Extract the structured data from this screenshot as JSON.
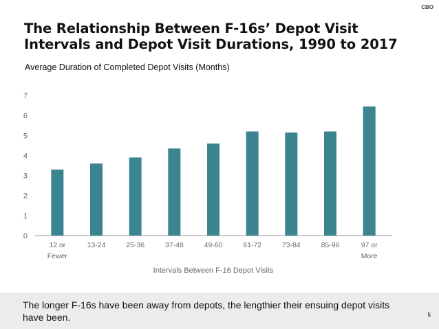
{
  "header": {
    "org": "CBO",
    "title_line1": "The Relationship Between F-16s’ Depot Visit",
    "title_line2": "Intervals and Depot Visit Durations, 1990 to 2017"
  },
  "footer": {
    "text": "The longer F-16s have been away from depots, the lengthier their ensuing depot visits have been.",
    "page": "5"
  },
  "chart_data": {
    "type": "bar",
    "title": "Average Duration of Completed Depot Visits (Months)",
    "xlabel": "Intervals Between F-16 Depot Visits",
    "ylabel": "Average Duration of Completed Depot Visits (Months)",
    "categories": [
      [
        "12 or",
        "Fewer"
      ],
      [
        "13-24"
      ],
      [
        "25-36"
      ],
      [
        "37-48"
      ],
      [
        "49-60"
      ],
      [
        "61-72"
      ],
      [
        "73-84"
      ],
      [
        "85-96"
      ],
      [
        "97 or",
        "More"
      ]
    ],
    "values": [
      3.3,
      3.6,
      3.9,
      4.35,
      4.6,
      5.2,
      5.15,
      5.2,
      6.45
    ],
    "ylim": [
      0,
      7
    ],
    "yticks": [
      0,
      1,
      2,
      3,
      4,
      5,
      6,
      7
    ],
    "bar_color": "#3a8590",
    "axis_color": "#999999"
  }
}
